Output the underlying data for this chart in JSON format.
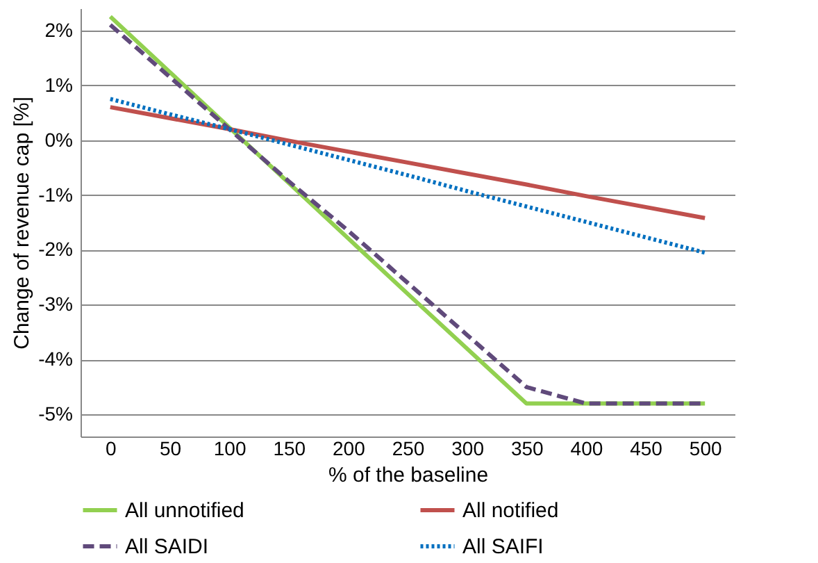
{
  "chart_data": {
    "type": "line",
    "xlabel": "% of the baseline",
    "ylabel": "Change of revenue cap  [%]",
    "categories": [
      "0",
      "50",
      "100",
      "150",
      "200",
      "250",
      "300",
      "350",
      "400",
      "450",
      "500"
    ],
    "series": [
      {
        "name": "All unnotified",
        "color": "#92d050",
        "line_style": "solid",
        "values": [
          2.25,
          1.24,
          0.23,
          -0.78,
          -1.79,
          -2.8,
          -3.8,
          -4.8,
          -4.8,
          -4.8,
          -4.8
        ]
      },
      {
        "name": "All notified",
        "color": "#c0504d",
        "line_style": "solid",
        "values": [
          0.6,
          0.4,
          0.2,
          -0.01,
          -0.21,
          -0.41,
          -0.61,
          -0.81,
          -1.02,
          -1.22,
          -1.42
        ]
      },
      {
        "name": "All SAIDI",
        "color": "#604a7b",
        "line_style": "dashed",
        "values": [
          2.1,
          1.15,
          0.2,
          -0.75,
          -1.65,
          -2.6,
          -3.55,
          -4.5,
          -4.8,
          -4.8,
          -4.8
        ]
      },
      {
        "name": "All SAIFI",
        "color": "#0070c0",
        "line_style": "dotted",
        "values": [
          0.75,
          0.47,
          0.2,
          -0.08,
          -0.36,
          -0.64,
          -0.93,
          -1.21,
          -1.49,
          -1.77,
          -2.05
        ]
      }
    ],
    "ylim": [
      -5.4,
      2.4
    ],
    "yticks": [
      {
        "value": 2,
        "label": "2%"
      },
      {
        "value": 1,
        "label": "1%"
      },
      {
        "value": 0,
        "label": "0%"
      },
      {
        "value": -1,
        "label": "-1%"
      },
      {
        "value": -2,
        "label": "-2%"
      },
      {
        "value": -3,
        "label": "-3%"
      },
      {
        "value": -4,
        "label": "-4%"
      },
      {
        "value": -5,
        "label": "-5%"
      }
    ],
    "grid": "y",
    "legend": "bottom",
    "marker": "none"
  }
}
